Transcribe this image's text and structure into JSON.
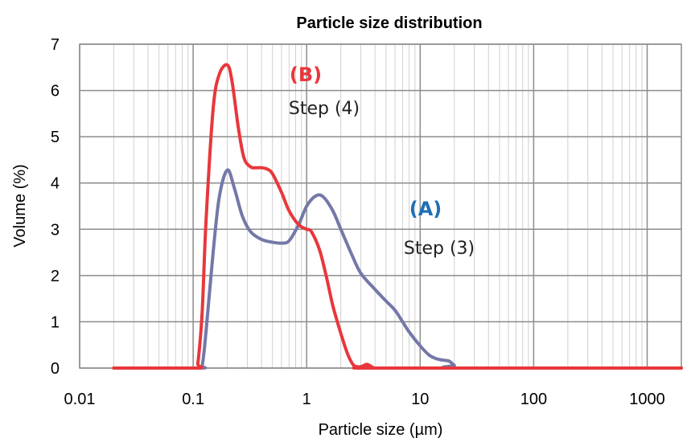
{
  "chart_data": {
    "type": "line",
    "title": "Particle size distribution",
    "xlabel": "Particle size (µm)",
    "ylabel": "Volume (%)",
    "x_scale": "log",
    "xlim": [
      0.01,
      2000
    ],
    "ylim": [
      0,
      7
    ],
    "x_ticks": [
      0.01,
      0.1,
      1,
      10,
      100,
      1000
    ],
    "x_tick_labels": [
      "0.01",
      "0.1",
      "1",
      "10",
      "100",
      "1000"
    ],
    "y_ticks": [
      0,
      1,
      2,
      3,
      4,
      5,
      6,
      7
    ],
    "y_tick_labels": [
      "0",
      "1",
      "2",
      "3",
      "4",
      "5",
      "6",
      "7"
    ],
    "grid": true,
    "legend": "none",
    "series": [
      {
        "name": "(A)",
        "color": "#7478a8",
        "x": [
          0.02,
          0.11,
          0.12,
          0.13,
          0.15,
          0.17,
          0.2,
          0.23,
          0.27,
          0.32,
          0.4,
          0.5,
          0.6,
          0.7,
          0.85,
          1.0,
          1.2,
          1.4,
          1.7,
          2.0,
          2.5,
          3.0,
          4.0,
          5.0,
          6.0,
          7.0,
          8.0,
          10.0,
          12.0,
          14.0,
          16.0,
          18.0,
          20.0,
          23.0,
          2000
        ],
        "y": [
          0,
          0,
          0.05,
          0.8,
          2.5,
          3.7,
          4.28,
          3.9,
          3.3,
          2.95,
          2.78,
          2.72,
          2.7,
          2.75,
          3.1,
          3.5,
          3.72,
          3.7,
          3.4,
          3.0,
          2.45,
          2.05,
          1.7,
          1.45,
          1.25,
          1.0,
          0.78,
          0.48,
          0.28,
          0.2,
          0.17,
          0.15,
          0.06,
          0,
          0
        ]
      },
      {
        "name": "(B)",
        "color": "#e8373c",
        "x": [
          0.02,
          0.105,
          0.11,
          0.12,
          0.13,
          0.15,
          0.17,
          0.2,
          0.22,
          0.25,
          0.28,
          0.32,
          0.36,
          0.4,
          0.45,
          0.5,
          0.6,
          0.7,
          0.85,
          1.0,
          1.1,
          1.3,
          1.5,
          1.7,
          2.0,
          2.3,
          2.6,
          3.0,
          3.4,
          3.8,
          4.2,
          2000
        ],
        "y": [
          0,
          0,
          0.1,
          1.2,
          3.2,
          5.6,
          6.35,
          6.55,
          6.2,
          5.2,
          4.55,
          4.35,
          4.33,
          4.33,
          4.3,
          4.2,
          3.8,
          3.4,
          3.1,
          3.0,
          2.95,
          2.55,
          1.95,
          1.35,
          0.75,
          0.3,
          0.06,
          0.03,
          0.08,
          0.02,
          0,
          0
        ]
      }
    ],
    "annotations": {
      "b_label": "(B)",
      "b_step": "Step (4)",
      "a_label": "(A)",
      "a_step": "Step (3)",
      "a_label_color": "#1f6fb5",
      "b_label_color": "#e8373c"
    }
  }
}
